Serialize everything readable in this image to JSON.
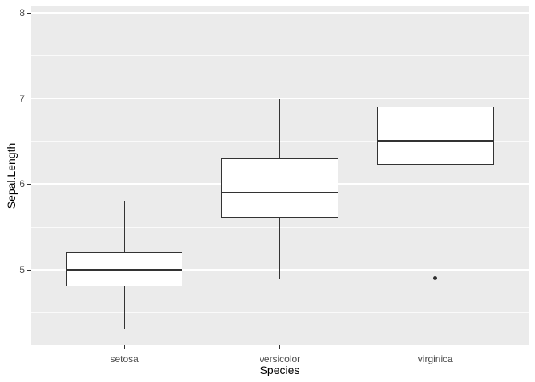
{
  "chart_data": {
    "type": "boxplot",
    "title": "",
    "xlabel": "Species",
    "ylabel": "Sepal.Length",
    "categories": [
      "setosa",
      "versicolor",
      "virginica"
    ],
    "series": [
      {
        "name": "setosa",
        "whisker_low": 4.3,
        "q1": 4.8,
        "median": 5.0,
        "q3": 5.2,
        "whisker_high": 5.8,
        "outliers": []
      },
      {
        "name": "versicolor",
        "whisker_low": 4.9,
        "q1": 5.6,
        "median": 5.9,
        "q3": 6.3,
        "whisker_high": 7.0,
        "outliers": []
      },
      {
        "name": "virginica",
        "whisker_low": 5.6,
        "q1": 6.225,
        "median": 6.5,
        "q3": 6.9,
        "whisker_high": 7.9,
        "outliers": [
          4.9
        ]
      }
    ],
    "y_axis": {
      "ticks": [
        5,
        6,
        7,
        8
      ],
      "tick_labels": [
        "5",
        "6",
        "7",
        "8"
      ],
      "minor_ticks": [
        4.5,
        5.5,
        6.5,
        7.5
      ],
      "range": [
        4.115,
        8.085
      ]
    },
    "legend": "none",
    "grid": "on",
    "style": {
      "panel_bg": "#EBEBEB",
      "grid_color": "#FFFFFF",
      "box_fill": "#FFFFFF",
      "box_stroke": "#333333",
      "tick_text_color": "#4D4D4D",
      "axis_title_color": "#000000"
    }
  }
}
